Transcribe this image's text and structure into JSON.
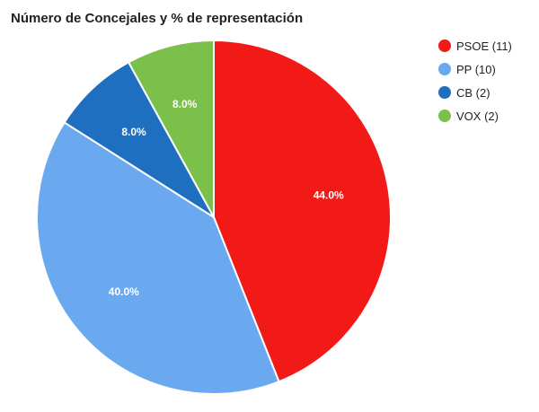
{
  "chart_data": {
    "type": "pie",
    "title": "Número de Concejales y % de representación",
    "slices": [
      {
        "name": "PSOE",
        "legend": "PSOE (11)",
        "seats": 11,
        "value": 44.0,
        "label": "44.0%",
        "color": "#f21a17"
      },
      {
        "name": "PP",
        "legend": "PP (10)",
        "seats": 10,
        "value": 40.0,
        "label": "40.0%",
        "color": "#6aa9f0"
      },
      {
        "name": "CB",
        "legend": "CB (2)",
        "seats": 2,
        "value": 8.0,
        "label": "8.0%",
        "color": "#1e6fbf"
      },
      {
        "name": "VOX",
        "legend": "VOX (2)",
        "seats": 2,
        "value": 8.0,
        "label": "8.0%",
        "color": "#7ac04b"
      }
    ],
    "legend_position": "right"
  }
}
